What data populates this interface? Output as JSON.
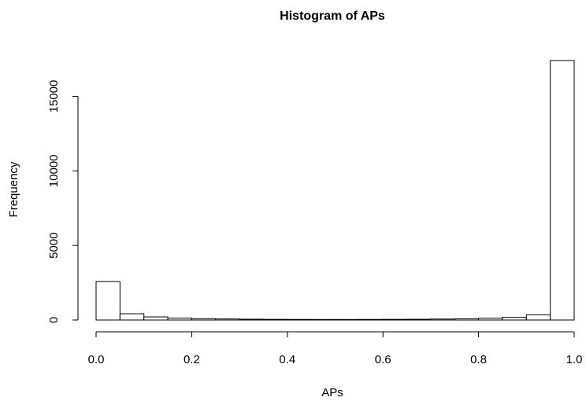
{
  "chart_data": {
    "type": "bar",
    "title": "Histogram of APs",
    "xlabel": "APs",
    "ylabel": "Frequency",
    "xlim": [
      0,
      1
    ],
    "ylim": [
      0,
      17400
    ],
    "x_ticks": [
      "0.0",
      "0.2",
      "0.4",
      "0.6",
      "0.8",
      "1.0"
    ],
    "y_ticks": [
      "0",
      "5000",
      "10000",
      "15000"
    ],
    "bins": [
      {
        "start": 0.0,
        "end": 0.05,
        "value": 2580
      },
      {
        "start": 0.05,
        "end": 0.1,
        "value": 420
      },
      {
        "start": 0.1,
        "end": 0.15,
        "value": 210
      },
      {
        "start": 0.15,
        "end": 0.2,
        "value": 130
      },
      {
        "start": 0.2,
        "end": 0.25,
        "value": 90
      },
      {
        "start": 0.25,
        "end": 0.3,
        "value": 70
      },
      {
        "start": 0.3,
        "end": 0.35,
        "value": 55
      },
      {
        "start": 0.35,
        "end": 0.4,
        "value": 45
      },
      {
        "start": 0.4,
        "end": 0.45,
        "value": 40
      },
      {
        "start": 0.45,
        "end": 0.5,
        "value": 35
      },
      {
        "start": 0.5,
        "end": 0.55,
        "value": 35
      },
      {
        "start": 0.55,
        "end": 0.6,
        "value": 40
      },
      {
        "start": 0.6,
        "end": 0.65,
        "value": 45
      },
      {
        "start": 0.65,
        "end": 0.7,
        "value": 50
      },
      {
        "start": 0.7,
        "end": 0.75,
        "value": 65
      },
      {
        "start": 0.75,
        "end": 0.8,
        "value": 85
      },
      {
        "start": 0.8,
        "end": 0.85,
        "value": 120
      },
      {
        "start": 0.85,
        "end": 0.9,
        "value": 175
      },
      {
        "start": 0.9,
        "end": 0.95,
        "value": 350
      },
      {
        "start": 0.95,
        "end": 1.0,
        "value": 17400
      }
    ],
    "grid": false,
    "legend": "none",
    "colors": {
      "bar_fill": "#ffffff",
      "bar_stroke": "#000000"
    }
  }
}
